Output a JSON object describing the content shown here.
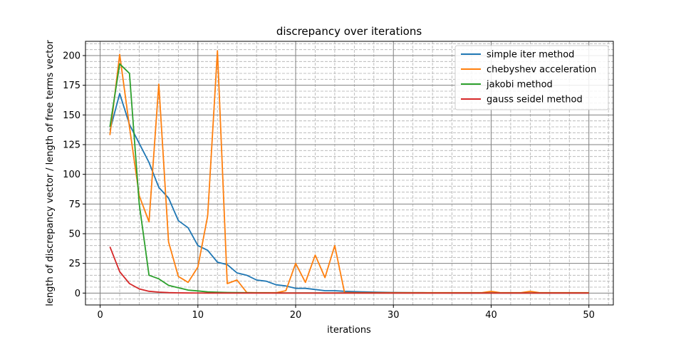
{
  "chart_data": {
    "type": "line",
    "title": "discrepancy over iterations",
    "xlabel": "iterations",
    "ylabel": "length of discrepancy vector / length of free terms vector",
    "xlim": [
      -1.5,
      52.5
    ],
    "ylim": [
      -10,
      212
    ],
    "xticks": [
      0,
      10,
      20,
      30,
      40,
      50
    ],
    "yticks": [
      0,
      25,
      50,
      75,
      100,
      125,
      150,
      175,
      200
    ],
    "grid": "major and minor",
    "legend_position": "top-right",
    "x": [
      1,
      2,
      3,
      4,
      5,
      6,
      7,
      8,
      9,
      10,
      11,
      12,
      13,
      14,
      15,
      16,
      17,
      18,
      19,
      20,
      21,
      22,
      23,
      24,
      25,
      26,
      27,
      28,
      29,
      30,
      31,
      32,
      33,
      34,
      35,
      36,
      37,
      38,
      39,
      40,
      41,
      42,
      43,
      44,
      45,
      46,
      47,
      48,
      49,
      50
    ],
    "series": [
      {
        "name": "simple iter method",
        "color": "#1f77b4",
        "values": [
          137,
          168,
          142,
          126,
          110,
          89,
          80,
          61,
          55,
          40,
          36,
          26,
          24,
          17,
          15,
          11,
          10,
          7,
          6,
          4,
          4,
          3,
          2,
          2,
          1.5,
          1.2,
          1,
          0.8,
          0.6,
          0.5,
          0.4,
          0.3,
          0.3,
          0.2,
          0.2,
          0.1,
          0.1,
          0.1,
          0.1,
          0.1,
          0.1,
          0.1,
          0.05,
          0.05,
          0.05,
          0.05,
          0.05,
          0.05,
          0.05,
          0.05
        ]
      },
      {
        "name": "chebyshev acceleration",
        "color": "#ff7f0e",
        "values": [
          133,
          201,
          140,
          82,
          60,
          176,
          43,
          14,
          9,
          22,
          65,
          204,
          8,
          11,
          0.5,
          0.3,
          0.3,
          0.3,
          2,
          25,
          9,
          32,
          13,
          40,
          0.5,
          0.3,
          0.3,
          0.3,
          0.3,
          0.3,
          0.3,
          0.3,
          0.3,
          0.3,
          0.3,
          0.3,
          0.3,
          0.3,
          0.3,
          1.5,
          0.3,
          0.3,
          0.3,
          1.5,
          0.3,
          0.3,
          0.3,
          0.3,
          0.3,
          0.3
        ]
      },
      {
        "name": "jakobi method",
        "color": "#2ca02c",
        "values": [
          140,
          193,
          185,
          75,
          15,
          12,
          6.5,
          4.5,
          2.5,
          1.8,
          1,
          0.7,
          0.5,
          0.4,
          0.3,
          0.2,
          0.2,
          0.1,
          0.1,
          0.1,
          0.1,
          0.1,
          0.1,
          0.1,
          0.1,
          0.1,
          0.1,
          0.1,
          0.1,
          0.1,
          0.1,
          0.1,
          0.1,
          0.1,
          0.1,
          0.1,
          0.1,
          0.1,
          0.1,
          0.1,
          0.1,
          0.1,
          0.1,
          0.1,
          0.1,
          0.1,
          0.1,
          0.1,
          0.1,
          0.1
        ]
      },
      {
        "name": "gauss seidel method",
        "color": "#d62728",
        "values": [
          39,
          18,
          8,
          3.5,
          1.5,
          0.8,
          0.4,
          0.2,
          0.1,
          0.05,
          0.02,
          0.01,
          0.01,
          0.01,
          0.01,
          0.01,
          0.01,
          0.01,
          0.01,
          0.01,
          0.01,
          0.01,
          0.01,
          0.01,
          0.01,
          0.01,
          0.01,
          0.01,
          0.01,
          0.01,
          0.01,
          0.01,
          0.01,
          0.01,
          0.01,
          0.01,
          0.01,
          0.01,
          0.01,
          0.01,
          0.01,
          0.01,
          0.01,
          0.01,
          0.01,
          0.01,
          0.01,
          0.01,
          0.01,
          0.01
        ]
      }
    ]
  }
}
